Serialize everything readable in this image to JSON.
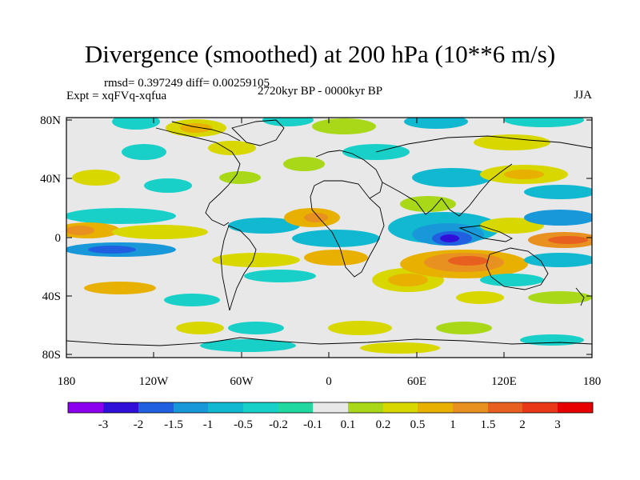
{
  "title": "Divergence (smoothed) at 200 hPa (10**6 m/s)",
  "stats_line": "rmsd= 0.397249 diff= 0.00259105",
  "experiment_line": "Expt = xqFVq-xqfua",
  "period_line": "2720kyr BP - 0000kyr BP",
  "season_label": "JJA",
  "axes": {
    "lat_labels": [
      "80N",
      "40N",
      "0",
      "40S",
      "80S"
    ],
    "lon_labels": [
      "180",
      "120W",
      "60W",
      "0",
      "60E",
      "120E",
      "180"
    ]
  },
  "colorbar": {
    "labels": [
      "-3",
      "-2",
      "-1.5",
      "-1",
      "-0.5",
      "-0.2",
      "-0.1",
      "0.1",
      "0.2",
      "0.5",
      "1",
      "1.5",
      "2",
      "3"
    ],
    "colors": [
      "#8b00ee",
      "#3010d8",
      "#2060e0",
      "#1898d8",
      "#10b8d0",
      "#18d0c8",
      "#20d8a0",
      "#e8e8e8",
      "#a8d818",
      "#d8d800",
      "#e8b000",
      "#e89020",
      "#e86020",
      "#e83818",
      "#e80000"
    ]
  },
  "field_colors": {
    "ocean": "#e8e8e8",
    "land_outline": "#000000",
    "neg_weak": "#20d8a0",
    "neg_light": "#18d0c8",
    "neg_mid": "#10b8d0",
    "neg_strong": "#1898d8",
    "neg_deep": "#2060e0",
    "neg_max": "#3010d8",
    "pos_weak": "#a8d818",
    "pos_light": "#d8d800",
    "pos_mid": "#e8b000",
    "pos_strong": "#e89020",
    "pos_deep": "#e86020"
  }
}
